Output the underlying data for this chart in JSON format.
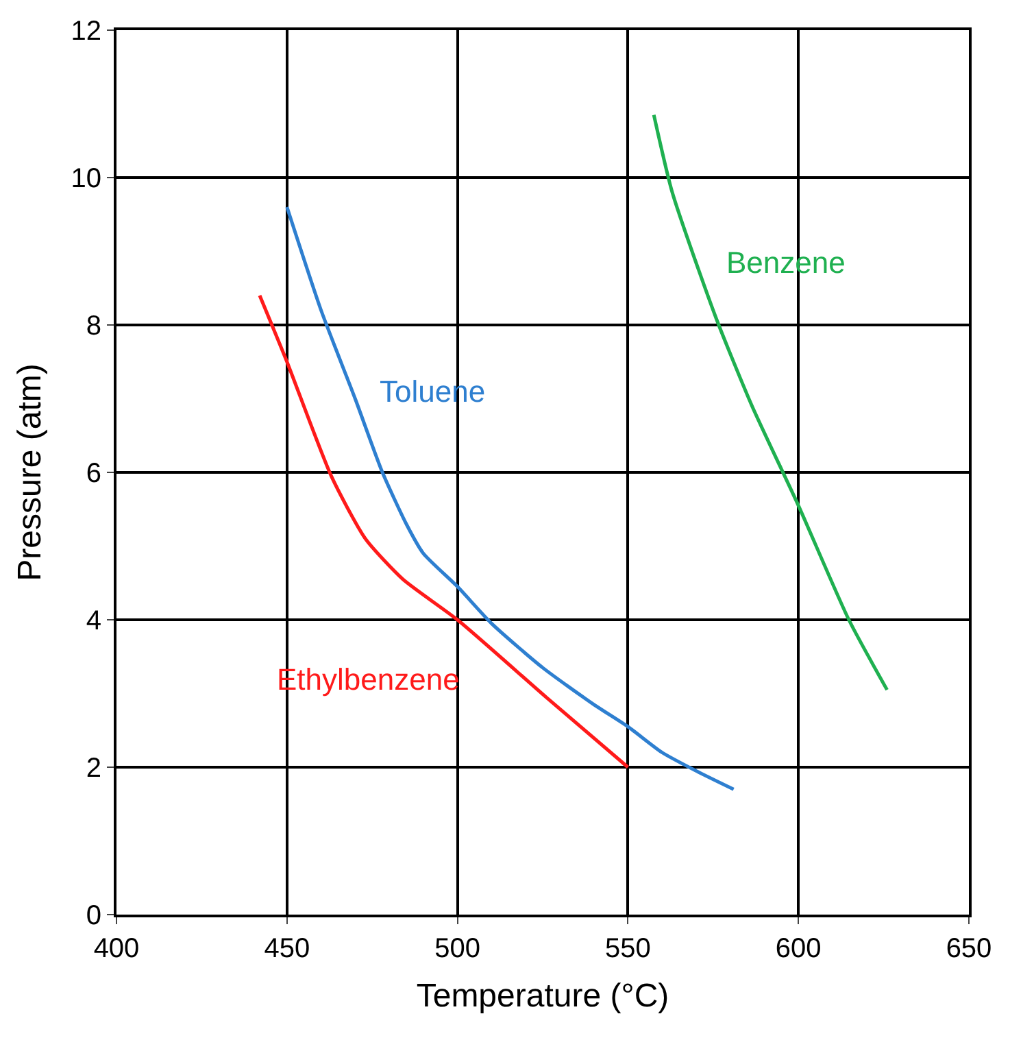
{
  "chart_data": {
    "type": "line",
    "xlabel": "Temperature (°C)",
    "ylabel": "Pressure (atm)",
    "xlim": [
      400,
      650
    ],
    "xticks": [
      400,
      450,
      500,
      550,
      600,
      650
    ],
    "ylim": [
      0,
      12
    ],
    "yticks": [
      0,
      2,
      4,
      6,
      8,
      10,
      12
    ],
    "grid": true,
    "legend": false,
    "marker": "none",
    "line_style": "solid",
    "series": [
      {
        "name": "Toluene",
        "color": "#2e7fd0",
        "x": [
          450,
          460,
          470,
          478,
          485,
          490,
          500,
          510,
          525,
          540,
          550,
          560,
          570,
          581
        ],
        "values": [
          9.6,
          8.2,
          7.0,
          6.0,
          5.3,
          4.9,
          4.45,
          3.95,
          3.35,
          2.85,
          2.55,
          2.2,
          1.95,
          1.7
        ]
      },
      {
        "name": "Ethylbenzene",
        "color": "#ff1a1a",
        "x": [
          442,
          450,
          463,
          473,
          484,
          500,
          526,
          550
        ],
        "values": [
          8.4,
          7.5,
          5.95,
          5.1,
          4.55,
          4.0,
          2.95,
          2.0
        ]
      },
      {
        "name": "Benzene",
        "color": "#1fb050",
        "x": [
          557.6,
          563,
          575.8,
          586.4,
          600,
          614.8,
          626
        ],
        "values": [
          10.85,
          9.8,
          8.1,
          6.9,
          5.55,
          4.0,
          3.05
        ]
      }
    ]
  }
}
